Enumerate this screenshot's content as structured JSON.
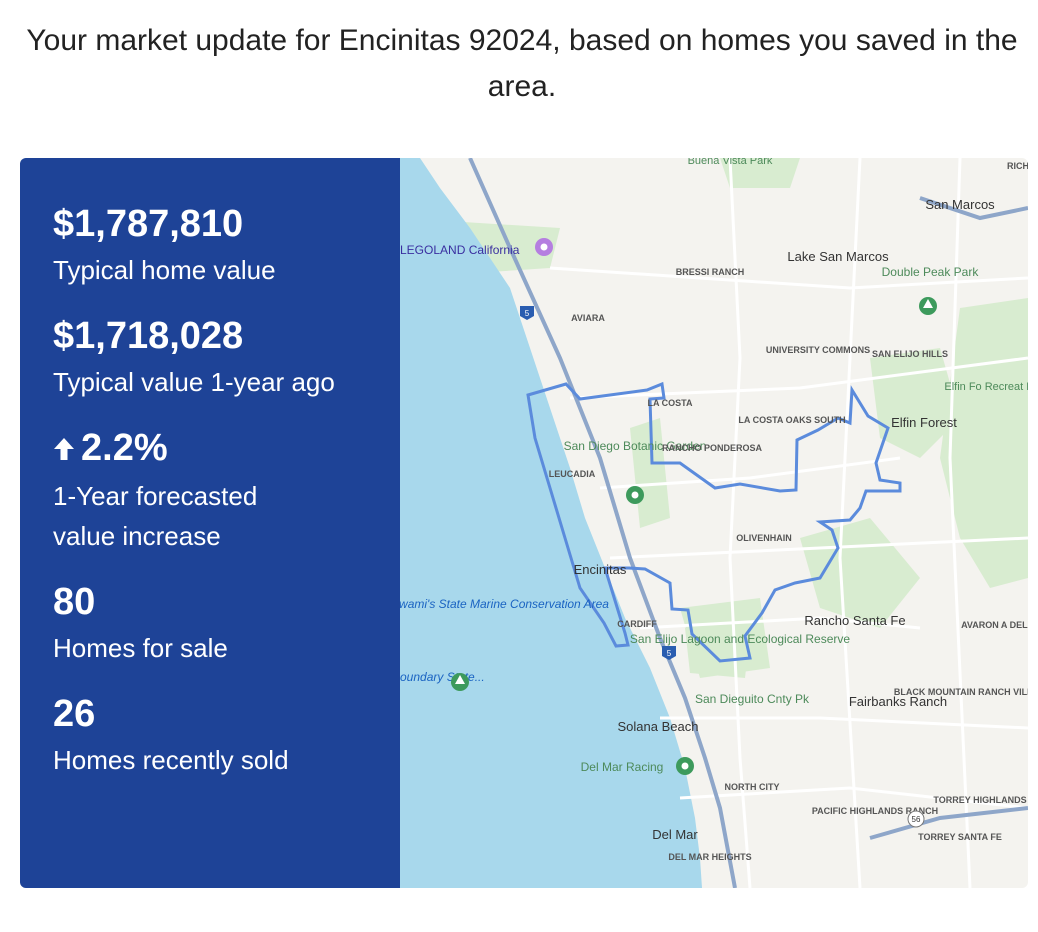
{
  "intro": "Your market update for Encinitas 92024, based on homes you saved in the area.",
  "stats": [
    {
      "value": "$1,787,810",
      "label": "Typical home value"
    },
    {
      "value": "$1,718,028",
      "label": "Typical value 1-year ago"
    },
    {
      "value": "2.2%",
      "label": "1-Year forecasted value increase",
      "icon": "up-arrow-icon"
    },
    {
      "value": "80",
      "label": "Homes for sale"
    },
    {
      "value": "26",
      "label": "Homes recently sold"
    }
  ],
  "map": {
    "labels": {
      "buena_vista": "Buena Vista Park",
      "san_marcos": "San Marcos",
      "legoland": "LEGOLAND California",
      "bressi": "BRESSI RANCH",
      "lake_san_marcos": "Lake San Marcos",
      "double_peak": "Double Peak Park",
      "aviara": "AVIARA",
      "university_commons": "UNIVERSITY COMMONS",
      "san_elijo_hills": "SAN ELIJO HILLS",
      "la_costa": "LA COSTA",
      "la_costa_oaks": "LA COSTA OAKS SOUTH",
      "elfin_forest": "Elfin Forest",
      "elfin_rec": "Elfin Fo Recreat Reser",
      "botanic": "San Diego Botanic Garden",
      "rancho_ponderosa": "RANCHO PONDEROSA",
      "leucadia": "LEUCADIA",
      "olivenhain": "OLIVENHAIN",
      "encinitas": "Encinitas",
      "swamis": "Swami's State Marine Conservation Area",
      "cardiff": "CARDIFF",
      "san_elijo_lagoon": "San Elijo Lagoon and Ecological Reserve",
      "rancho_santa_fe": "Rancho Santa Fe",
      "avaron": "AVARON A DEL SUR",
      "boundary": "oundary State...",
      "san_dieguito": "San Dieguito Cnty Pk",
      "fairbanks": "Fairbanks Ranch",
      "black_mountain": "BLACK MOUNTAIN RANCH VILLAGE",
      "solana_beach": "Solana Beach",
      "del_mar_racing": "Del Mar Racing",
      "north_city": "NORTH CITY",
      "pacific_highlands": "PACIFIC HIGHLANDS RANCH",
      "torrey_highlands": "TORREY HIGHLANDS",
      "del_mar": "Del Mar",
      "torrey_santa_fe": "TORREY SANTA FE",
      "del_mar_heights": "DEL MAR HEIGHTS",
      "rich": "RICH",
      "route_5": "5",
      "route_56": "56"
    },
    "colors": {
      "ocean": "#a8d8ec",
      "land": "#f4f3ef",
      "park": "#d8ecd0",
      "boundary": "#5b8bdc",
      "freeway": "#8ea6c9",
      "panel": "#1e4397"
    }
  }
}
